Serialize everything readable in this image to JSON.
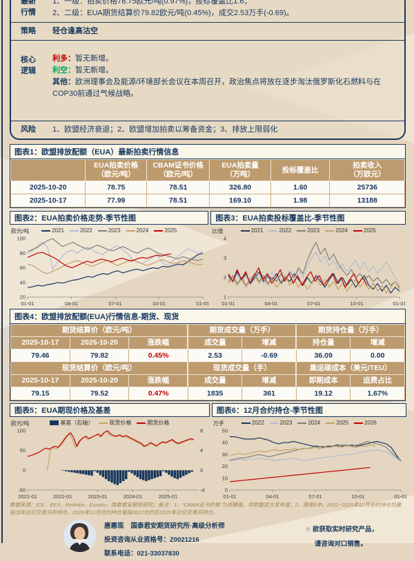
{
  "page": {
    "bg": "#e4d6c0",
    "accent": "#17375e",
    "red": "#c00000",
    "green": "#00a651",
    "header_tan": "#bd9b6e"
  },
  "briefing": {
    "market_label_l1": "最新",
    "market_label_l2": "行情",
    "market_line1": "1、一级：拍卖价格78.75欧元/吨(0.97%)，投标覆盖比1.6；",
    "market_line2": "2、二级：EUA期货结算价79.82欧元/吨(0.45%)，成交2.53万手(-0.69)。",
    "strategy_label": "策略",
    "strategy_text": "轻仓逢高沽空",
    "core_label_l1": "核心",
    "core_label_l2": "逻辑",
    "bull_label": "利多：",
    "bull_text": "暂无新增。",
    "bear_label": "利空：",
    "bear_text": "暂无新增。",
    "other_label": "其他：",
    "other_text": "欧洲理事会及能源/环境部长会议在本周召开，政治焦点将放在逐步淘汰俄罗斯化石燃料与在COP30前通过气候战略。",
    "risk_label": "风险",
    "risk_text": "1、欧盟经济衰退；2、欧盟增加拍卖以筹备资金；3、排放上限弱化"
  },
  "table1": {
    "title": "图表1：欧盟排放配额（EUA）最新拍卖行情信息",
    "headers": [
      {
        "l1": "",
        "l2": ""
      },
      {
        "l1": "EUA拍卖价格",
        "l2": "（欧元/吨）"
      },
      {
        "l1": "CBAM证书价格",
        "l2": "（欧元/吨）"
      },
      {
        "l1": "EUA拍卖量",
        "l2": "（万吨）"
      },
      {
        "l1": "投标覆盖比",
        "l2": ""
      },
      {
        "l1": "拍卖收入",
        "l2": "（万欧元）"
      }
    ],
    "rows": [
      [
        "2025-10-20",
        "78.75",
        "78.51",
        "326.80",
        "1.60",
        "25736"
      ],
      [
        "2025-10-17",
        "77.99",
        "78.51",
        "169.10",
        "1.98",
        "13188"
      ]
    ]
  },
  "table4": {
    "title": "图表4：欧盟排放配额(EUA)行情信息-期货、现货",
    "fut_groups": [
      "期货结算价（欧元/吨）",
      "期货成交量（万手）",
      "期货持仓量（万手）"
    ],
    "fut_cols": [
      "2025-10-17",
      "2025-10-20",
      "涨跌幅",
      "成交量",
      "增减",
      "持仓量",
      "增减"
    ],
    "fut_vals": [
      "79.46",
      "79.82",
      "0.45%",
      "2.53",
      "-0.69",
      "36.09",
      "0.00"
    ],
    "spot_groups": [
      "现货结算价（欧元/吨）",
      "现货成交量（手）",
      "集运碳成本（美元/TEU）"
    ],
    "spot_cols": [
      "2025-10-17",
      "2025-10-20",
      "涨跌幅",
      "成交量",
      "增减",
      "即期成本",
      "运费占比"
    ],
    "spot_vals": [
      "79.15",
      "79.52",
      "0.47%",
      "1835",
      "361",
      "19.12",
      "1.67%"
    ]
  },
  "chart_data": {
    "chart2": {
      "type": "line",
      "title": "图表2：EUA拍卖价格走势-季节性图",
      "unit": "欧元/吨",
      "ylim": [
        20,
        100
      ],
      "yticks": [
        100,
        80,
        60,
        40,
        20
      ],
      "xticks": [
        "01-01",
        "04-01",
        "07-01",
        "10-01",
        "01-01"
      ],
      "series": [
        {
          "name": "2021",
          "color": "#17375e",
          "values": [
            33,
            34,
            36,
            35,
            37,
            38,
            40,
            39,
            41,
            43,
            44,
            46,
            48,
            47,
            50,
            52,
            51,
            54,
            56,
            53,
            55,
            57,
            58,
            56,
            58,
            60,
            59,
            62,
            61,
            63,
            65,
            64,
            68,
            73,
            78,
            80
          ]
        },
        {
          "name": "2022",
          "color": "#b0bdd1",
          "values": [
            79,
            84,
            90,
            95,
            88,
            58,
            68,
            76,
            82,
            84,
            80,
            85,
            88,
            84,
            80,
            78,
            83,
            87,
            90,
            85,
            79,
            71,
            67,
            66,
            70,
            75,
            78,
            66,
            64,
            69,
            75,
            81,
            86,
            83,
            80,
            82
          ]
        },
        {
          "name": "2023",
          "color": "#7f7f7f",
          "values": [
            82,
            85,
            88,
            93,
            97,
            100,
            94,
            89,
            92,
            95,
            91,
            88,
            85,
            88,
            91,
            88,
            85,
            83,
            86,
            89,
            86,
            82,
            80,
            84,
            87,
            84,
            80,
            78,
            76,
            74,
            72,
            75,
            73,
            71,
            70,
            72
          ]
        },
        {
          "name": "2024",
          "color": "#c3a169",
          "values": [
            65,
            63,
            59,
            54,
            52,
            55,
            58,
            62,
            65,
            68,
            70,
            67,
            64,
            62,
            65,
            68,
            70,
            66,
            63,
            66,
            69,
            71,
            68,
            65,
            63,
            66,
            69,
            71,
            68,
            66,
            67,
            70,
            68,
            66,
            64,
            65
          ]
        },
        {
          "name": "2025",
          "color": "#c00000",
          "xspan": [
            0,
            0.82
          ],
          "values": [
            74,
            77,
            80,
            81,
            78,
            75,
            71,
            66,
            62,
            60,
            63,
            66,
            69,
            67,
            70,
            72,
            70,
            68,
            71,
            73,
            71,
            69,
            72,
            74,
            73,
            75,
            77,
            76,
            78,
            79
          ]
        }
      ]
    },
    "chart3": {
      "type": "line",
      "title": "图表3：EUA拍卖投标覆盖比-季节性图",
      "unit": "比值",
      "ylim": [
        1,
        4
      ],
      "yticks": [
        4,
        3,
        2,
        1
      ],
      "xticks": [
        "01-01",
        "04-01",
        "07-01",
        "10-01",
        "01-01"
      ],
      "series": [
        {
          "name": "2021",
          "color": "#17375e",
          "values": [
            2.1,
            1.8,
            2.3,
            1.9,
            2.2,
            1.7,
            2.0,
            2.3,
            1.8,
            2.1,
            1.9,
            2.2,
            1.7,
            2.0,
            1.8,
            2.2,
            1.9,
            1.6,
            2.0,
            1.7,
            2.1,
            1.8,
            1.5,
            1.9,
            2.2,
            1.7,
            2.0,
            1.6,
            1.9,
            1.5,
            1.8,
            2.1,
            1.6,
            1.4,
            1.7,
            1.3,
            1.6,
            1.2,
            1.5,
            1.3
          ]
        },
        {
          "name": "2022",
          "color": "#b0bdd1",
          "values": [
            2.0,
            1.7,
            2.2,
            1.8,
            2.1,
            1.6,
            1.9,
            2.2,
            1.7,
            2.0,
            2.3,
            1.8,
            2.1,
            1.9,
            2.2,
            1.8,
            2.4,
            2.0,
            2.6,
            3.0,
            3.3,
            2.8,
            3.1,
            2.6,
            2.9,
            2.4,
            2.7,
            2.3,
            2.6,
            2.9,
            2.4,
            2.8,
            2.3,
            2.6,
            2.2,
            2.5,
            2.8,
            2.4,
            2.0,
            1.7
          ]
        },
        {
          "name": "2023",
          "color": "#7f7f7f",
          "values": [
            1.8,
            2.1,
            1.7,
            2.0,
            1.6,
            1.9,
            2.2,
            1.8,
            2.1,
            1.7,
            2.0,
            1.8,
            2.2,
            1.9,
            2.3,
            2.0,
            2.5,
            2.2,
            2.9,
            3.4,
            3.8,
            3.2,
            3.5,
            2.9,
            3.2,
            2.7,
            2.4,
            2.1,
            2.4,
            2.0,
            2.2,
            1.9,
            2.1,
            1.8,
            2.0,
            1.7,
            1.9,
            1.6,
            1.8,
            1.5
          ]
        },
        {
          "name": "2024",
          "color": "#c3a169",
          "values": [
            1.7,
            2.0,
            1.6,
            1.9,
            1.5,
            1.8,
            2.1,
            1.7,
            2.0,
            1.6,
            1.9,
            1.5,
            1.8,
            2.1,
            1.6,
            1.9,
            1.5,
            1.8,
            1.4,
            1.7,
            2.0,
            1.6,
            1.9,
            1.5,
            1.8,
            1.4,
            1.7,
            1.3,
            1.6,
            1.9,
            1.5,
            1.8,
            1.4,
            1.7,
            1.3,
            1.6,
            1.2,
            1.5,
            1.8,
            1.4
          ]
        },
        {
          "name": "2025",
          "color": "#c00000",
          "xspan": [
            0,
            0.81
          ],
          "values": [
            2.2,
            1.8,
            2.4,
            1.9,
            2.3,
            1.7,
            2.1,
            2.5,
            1.9,
            2.2,
            1.7,
            2.0,
            2.4,
            1.8,
            2.2,
            1.7,
            2.1,
            1.6,
            2.0,
            2.3,
            1.8,
            2.1,
            1.6,
            1.9,
            2.2,
            1.7,
            2.0,
            1.5,
            1.9,
            2.2,
            1.7,
            2.0,
            1.6
          ]
        }
      ]
    },
    "chart5": {
      "type": "line+bar",
      "title": "图表5：EUA期现价格及基差",
      "unit": "欧元/吨",
      "ylim": [
        -50,
        100
      ],
      "yticks": [
        100,
        50,
        0,
        -50
      ],
      "ylim_right": [
        -4,
        8
      ],
      "yticks_right": [
        8,
        4,
        0,
        -4
      ],
      "xticks": [
        "2021-01",
        "2022-01",
        "2023-01",
        "2024-01",
        "2025-01"
      ],
      "xtick_pos": [
        0,
        0.205,
        0.41,
        0.615,
        0.82
      ],
      "bars": {
        "name": "基差（右轴）",
        "color": "#17375e",
        "axis": "right",
        "xspan": [
          0,
          0.97
        ],
        "values": [
          0,
          0,
          0,
          0,
          0,
          0,
          0,
          0,
          0,
          0,
          0,
          0,
          -0.1,
          -0.2,
          -0.3,
          -0.4,
          -0.5,
          -0.6,
          -0.7,
          -0.8,
          -0.9,
          -1.0,
          -1.1,
          -0.2,
          -0.5,
          -1.0,
          -1.4,
          -1.8,
          -2.2,
          -2.5,
          -2.8,
          -3.0,
          -2.6,
          -2.2,
          -1.8,
          -0.3,
          -0.6,
          -1.0,
          -1.4,
          -1.8,
          -2.0,
          -2.2,
          -2.0,
          -1.8,
          -1.6,
          -1.4,
          -1.2,
          -0.2,
          -0.5,
          -0.9,
          -1.3,
          -1.6,
          -1.8,
          -1.5,
          -1.2,
          -0.9,
          -0.6,
          -0.3
        ]
      },
      "series": [
        {
          "name": "现货价格",
          "color": "#c3a169",
          "xspan": [
            0.115,
            0.97
          ],
          "values": [
            0,
            50,
            57,
            54,
            64,
            76,
            86,
            93,
            80,
            58,
            72,
            80,
            84,
            78,
            82,
            86,
            90,
            84,
            94,
            98,
            90,
            86,
            84,
            88,
            83,
            86,
            82,
            78,
            74,
            70,
            66,
            59,
            62,
            68,
            64,
            60,
            66,
            70,
            68,
            72,
            76,
            70,
            66,
            69,
            72,
            75,
            78,
            76
          ]
        },
        {
          "name": "期货价格",
          "color": "#c00000",
          "xspan": [
            0,
            0.97
          ],
          "values": [
            35,
            37,
            40,
            43,
            47,
            52,
            56,
            53,
            58,
            61,
            58,
            66,
            78,
            88,
            95,
            82,
            60,
            74,
            82,
            86,
            80,
            84,
            88,
            92,
            86,
            96,
            100,
            92,
            88,
            86,
            90,
            85,
            88,
            84,
            80,
            76,
            72,
            68,
            61,
            64,
            70,
            66,
            62,
            68,
            72,
            70,
            74,
            78,
            72,
            68,
            71,
            74,
            77,
            80,
            78
          ]
        }
      ]
    },
    "chart6": {
      "type": "line",
      "title": "图表6：12月合约持仓-季节性图",
      "unit": "万手",
      "ylim": [
        0,
        50
      ],
      "yticks": [
        50,
        40,
        30,
        20,
        10,
        0
      ],
      "xticks": [
        "01-01",
        "04-01",
        "07-01",
        "10-01",
        "01-01"
      ],
      "series": [
        {
          "name": "2022",
          "color": "#17375e",
          "values": [
            45,
            45,
            44,
            43,
            43,
            43,
            44,
            43,
            42,
            40,
            39,
            40,
            40,
            41,
            40,
            39,
            38,
            37,
            37,
            36,
            37,
            37,
            38,
            37,
            37,
            38,
            37,
            38,
            39,
            40,
            41,
            40,
            39,
            36,
            30,
            24
          ]
        },
        {
          "name": "2023",
          "color": "#b0bdd1",
          "values": [
            26,
            25,
            26,
            25,
            26,
            26,
            27,
            26,
            26,
            25,
            25,
            26,
            26,
            27,
            26,
            25,
            25,
            26,
            27,
            27,
            28,
            28,
            29,
            29,
            30,
            30,
            31,
            32,
            33,
            33,
            34,
            33,
            32,
            30,
            27,
            24
          ]
        },
        {
          "name": "2024",
          "color": "#7f7f7f",
          "values": [
            25,
            26,
            27,
            27,
            28,
            29,
            30,
            29,
            28,
            29,
            30,
            31,
            32,
            33,
            34,
            35,
            35,
            36,
            36,
            37,
            36,
            37,
            37,
            38,
            38,
            37,
            38,
            39,
            41,
            40,
            39,
            38,
            36,
            32,
            28,
            25
          ]
        },
        {
          "name": "2025",
          "color": "#c3a169",
          "xspan": [
            0,
            0.85
          ],
          "values": [
            29,
            30,
            31,
            30,
            31,
            32,
            33,
            32,
            33,
            34,
            33,
            34,
            34,
            35,
            34,
            35,
            35,
            36,
            35,
            36,
            36,
            37,
            36,
            37,
            37,
            36,
            37,
            37,
            38,
            37
          ]
        },
        {
          "name": "2026",
          "color": "#c00000",
          "xspan": [
            0,
            0.82
          ],
          "values": [
            7,
            7.5,
            8,
            8.5,
            9,
            9.5,
            10,
            10.5,
            11,
            11.5,
            12,
            12.5,
            13,
            13.5,
            14,
            14.5,
            15,
            15.5,
            16,
            16.5,
            17,
            17.5,
            18,
            18.5,
            19
          ]
        }
      ]
    }
  },
  "footnote": "数据来源：ICE、EEX、Refinitiv、Eurativ，国泰君安期货研究；备注：1、“CBAM证书价格”为测算值，非欧盟官方发布值；2、图表6中，2022~2025年12月合约持仓均是指当年对应交易日的持仓，2026年12月合约持仓是指2612合约在2025年对应交易日持仓。",
  "analyst": {
    "name": "唐惠现",
    "title": "国泰君安期货研究所·高级分析师",
    "cert": "投资咨询从业资格号：Z0021216",
    "phone": "联系电话：021-33037830",
    "star": "☆",
    "note1": "欲获取实时研究产品，",
    "note2": "请咨询对口销售。"
  }
}
